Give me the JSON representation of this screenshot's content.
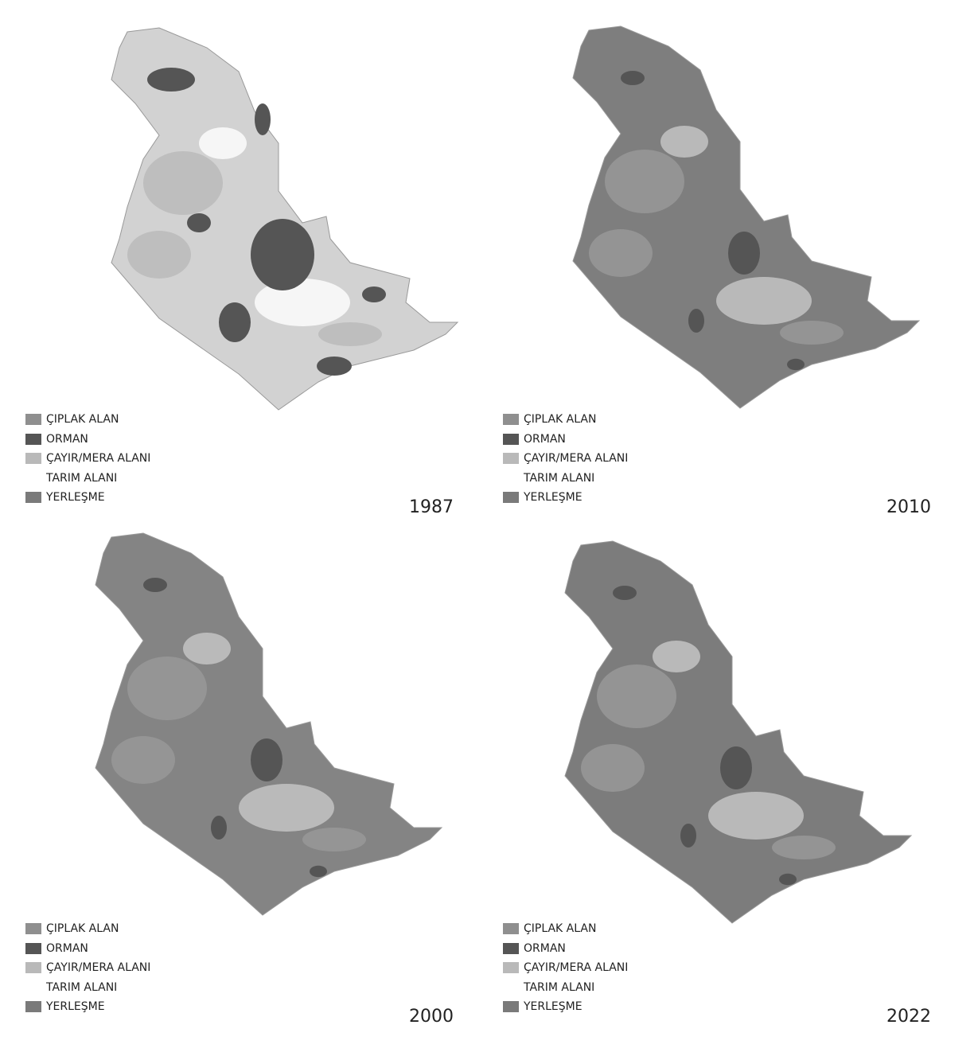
{
  "legend": [
    {
      "label": "ÇIPLAK ALAN",
      "color": "#8f8f8f"
    },
    {
      "label": "ORMAN",
      "color": "#555555"
    },
    {
      "label": "ÇAYIR/MERA ALANI",
      "color": "#b9b9b9"
    },
    {
      "label": "TARIM ALANI",
      "color": "#ffffff"
    },
    {
      "label": "YERLEŞME",
      "color": "#7a7a7a"
    }
  ],
  "panels": [
    {
      "year": "1987",
      "dominant_color": "#d2d2d2"
    },
    {
      "year": "2010",
      "dominant_color": "#7e7e7e"
    },
    {
      "year": "2000",
      "dominant_color": "#848484"
    },
    {
      "year": "2022",
      "dominant_color": "#7c7c7c"
    }
  ]
}
